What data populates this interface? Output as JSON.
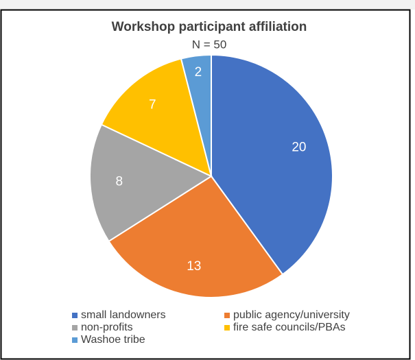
{
  "chart_data": {
    "type": "pie",
    "title": "Workshop participant affiliation",
    "subtitle": "N = 50",
    "categories": [
      "small landowners",
      "public agency/university",
      "non-profits",
      "fire safe councils/PBAs",
      "Washoe tribe"
    ],
    "values": [
      20,
      13,
      8,
      7,
      2
    ],
    "colors": [
      "#4472c4",
      "#ed7d31",
      "#a5a5a5",
      "#ffc000",
      "#5b9bd5"
    ],
    "legend": "bottom"
  }
}
